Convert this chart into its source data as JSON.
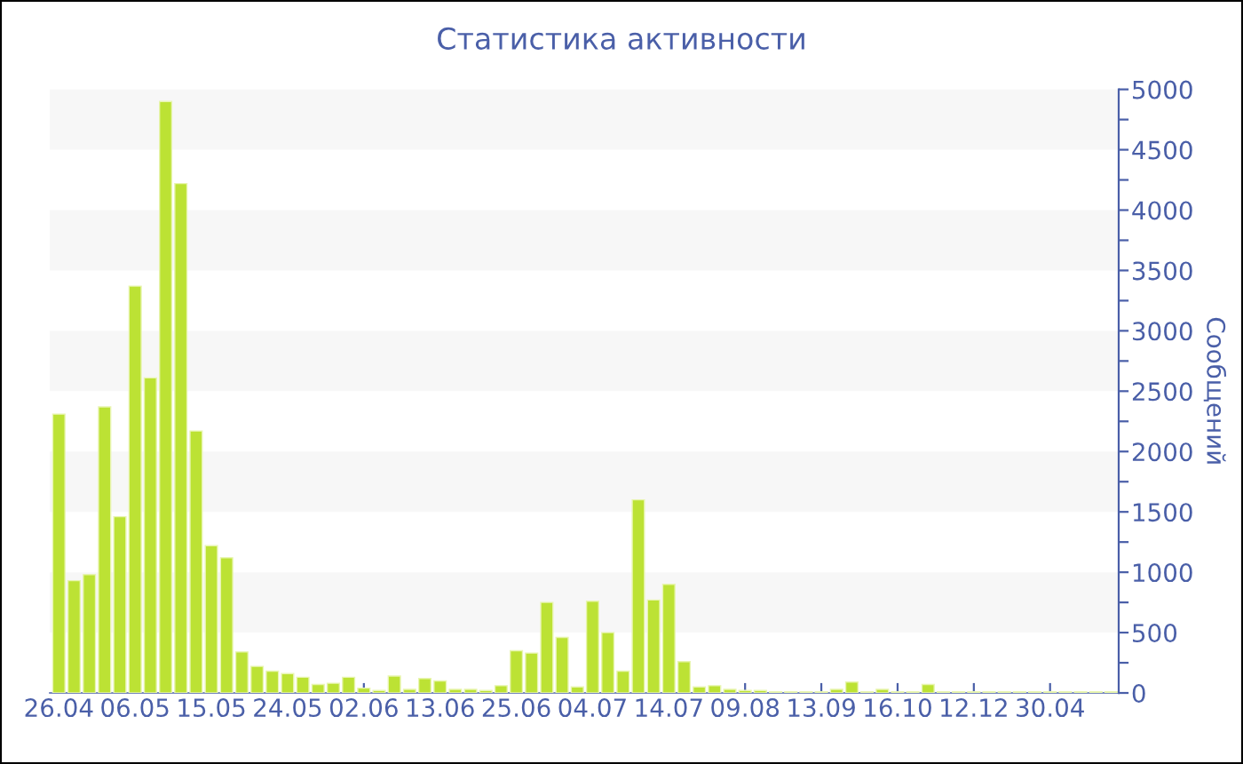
{
  "chart_data": {
    "type": "bar",
    "title": "Статистика активности",
    "ylabel": "Сообщений",
    "categories": [
      "26.04",
      null,
      null,
      null,
      null,
      "06.05",
      null,
      null,
      null,
      null,
      "15.05",
      null,
      null,
      null,
      null,
      "24.05",
      null,
      null,
      null,
      null,
      "02.06",
      null,
      null,
      null,
      null,
      "13.06",
      null,
      null,
      null,
      null,
      "25.06",
      null,
      null,
      null,
      null,
      "04.07",
      null,
      null,
      null,
      null,
      "14.07",
      null,
      null,
      null,
      null,
      "09.08",
      null,
      null,
      null,
      null,
      "13.09",
      null,
      null,
      null,
      null,
      "16.10",
      null,
      null,
      null,
      null,
      "12.12",
      null,
      null,
      null,
      null,
      "30.04",
      null,
      null,
      null,
      null
    ],
    "values": [
      2310,
      930,
      980,
      2370,
      1460,
      3370,
      2610,
      4900,
      4220,
      2170,
      1220,
      1120,
      340,
      220,
      180,
      160,
      130,
      70,
      80,
      130,
      40,
      20,
      140,
      30,
      120,
      100,
      30,
      30,
      20,
      60,
      350,
      330,
      750,
      460,
      50,
      760,
      500,
      180,
      1600,
      770,
      900,
      260,
      50,
      60,
      30,
      20,
      20,
      10,
      10,
      10,
      10,
      30,
      90,
      10,
      30,
      10,
      10,
      70,
      10,
      10,
      10,
      10,
      10,
      10,
      10,
      10,
      10,
      10,
      10,
      10
    ],
    "color": "#bce234",
    "ylim": [
      0,
      5000
    ],
    "yticks": [
      0,
      {
        "value": 250,
        "label": null
      },
      500,
      {
        "value": 750,
        "label": null
      },
      1000,
      {
        "value": 1250,
        "label": null
      },
      1500,
      {
        "value": 1750,
        "label": null
      },
      2000,
      {
        "value": 2250,
        "label": null
      },
      2500,
      {
        "value": 2750,
        "label": null
      },
      3000,
      {
        "value": 3250,
        "label": null
      },
      3500,
      {
        "value": 3750,
        "label": null
      },
      4000,
      {
        "value": 4250,
        "label": null
      },
      4500,
      {
        "value": 4750,
        "label": null
      },
      5000
    ],
    "bands": [
      {
        "axis": "y",
        "from": 500,
        "to": 1000,
        "color": "#f7f7f7"
      },
      {
        "axis": "y",
        "from": 1500,
        "to": 2000,
        "color": "#f7f7f7"
      },
      {
        "axis": "y",
        "from": 2500,
        "to": 3000,
        "color": "#f7f7f7"
      },
      {
        "axis": "y",
        "from": 3500,
        "to": 4000,
        "color": "#f7f7f7"
      },
      {
        "axis": "y",
        "from": 4500,
        "to": 5000,
        "color": "#f7f7f7"
      }
    ],
    "grid": false,
    "legend": false
  }
}
